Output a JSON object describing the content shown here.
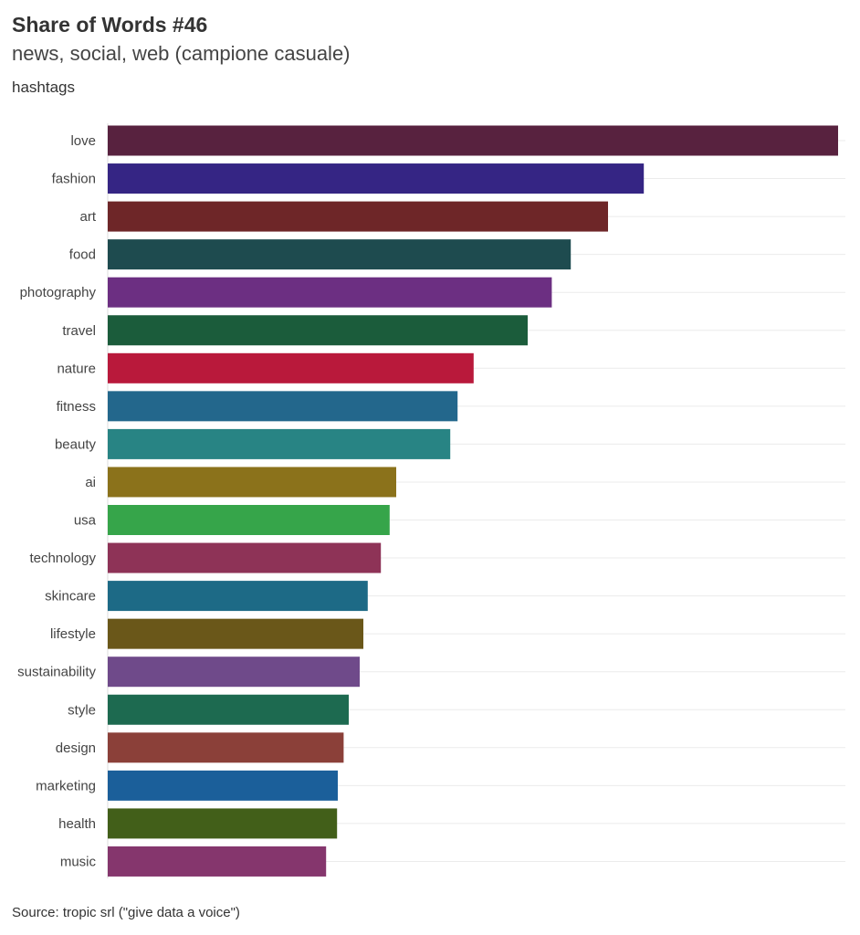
{
  "chart_data": {
    "type": "bar",
    "orientation": "horizontal",
    "title": "Share of Words #46",
    "subtitle": "news, social, web (campione casuale)",
    "ylabel": "hashtags",
    "xlabel": "",
    "source": "Source: tropic srl (\"give data a voice\")",
    "grid": true,
    "xlim": [
      0,
      100
    ],
    "categories": [
      "love",
      "fashion",
      "art",
      "food",
      "photography",
      "travel",
      "nature",
      "fitness",
      "beauty",
      "ai",
      "usa",
      "technology",
      "skincare",
      "lifestyle",
      "sustainability",
      "style",
      "design",
      "marketing",
      "health",
      "music"
    ],
    "values": [
      100,
      73.4,
      68.5,
      63.4,
      60.8,
      57.5,
      50.1,
      47.9,
      46.9,
      39.5,
      38.6,
      37.4,
      35.6,
      35.0,
      34.5,
      33.0,
      32.3,
      31.5,
      31.4,
      29.9
    ],
    "colors": [
      "#58223f",
      "#352584",
      "#6e2628",
      "#1e4b4f",
      "#6c2f82",
      "#1b5c3b",
      "#b9193b",
      "#23678c",
      "#288484",
      "#8b721b",
      "#36a54a",
      "#8e3357",
      "#1d6a86",
      "#6a5719",
      "#6f4a8a",
      "#1d6a50",
      "#8b4039",
      "#1b5f9a",
      "#425f19",
      "#85366d"
    ]
  }
}
